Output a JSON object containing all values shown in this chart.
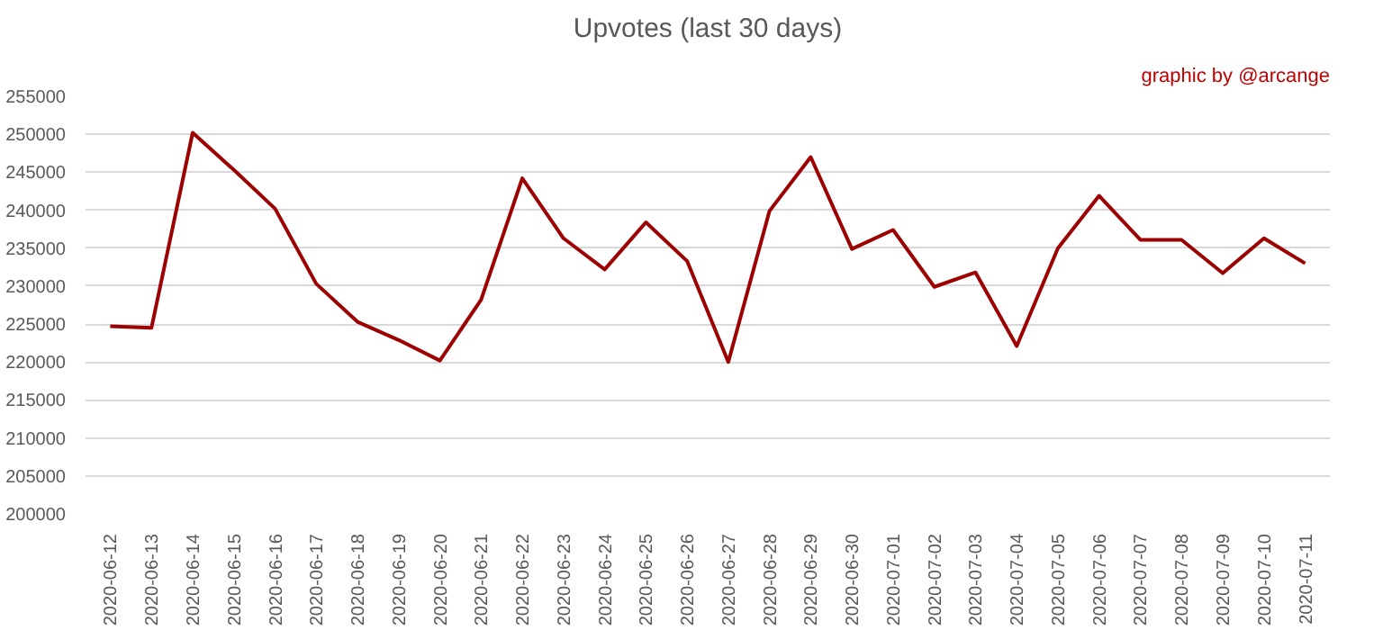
{
  "chart_data": {
    "type": "line",
    "title": "Upvotes (last 30 days)",
    "annotations": [
      "graphic by @arcange"
    ],
    "categories": [
      "2020-06-12",
      "2020-06-13",
      "2020-06-14",
      "2020-06-15",
      "2020-06-16",
      "2020-06-17",
      "2020-06-18",
      "2020-06-19",
      "2020-06-20",
      "2020-06-21",
      "2020-06-22",
      "2020-06-23",
      "2020-06-24",
      "2020-06-25",
      "2020-06-26",
      "2020-06-27",
      "2020-06-28",
      "2020-06-29",
      "2020-06-30",
      "2020-07-01",
      "2020-07-02",
      "2020-07-03",
      "2020-07-04",
      "2020-07-05",
      "2020-07-06",
      "2020-07-07",
      "2020-07-08",
      "2020-07-09",
      "2020-07-10",
      "2020-07-11"
    ],
    "series": [
      {
        "color": "#9c0000",
        "values": [
          224700,
          224500,
          250200,
          245300,
          240200,
          230300,
          225300,
          222900,
          220200,
          228200,
          244200,
          236300,
          232200,
          238400,
          233300,
          220000,
          239900,
          247000,
          234900,
          237400,
          229900,
          231800,
          222100,
          235000,
          241900,
          236100,
          236100,
          231700,
          236300,
          233000
        ]
      }
    ],
    "ylim": [
      200000,
      255000
    ],
    "yticks": [
      200000,
      205000,
      210000,
      215000,
      220000,
      225000,
      230000,
      235000,
      240000,
      245000,
      250000,
      255000
    ],
    "grid": "y"
  }
}
